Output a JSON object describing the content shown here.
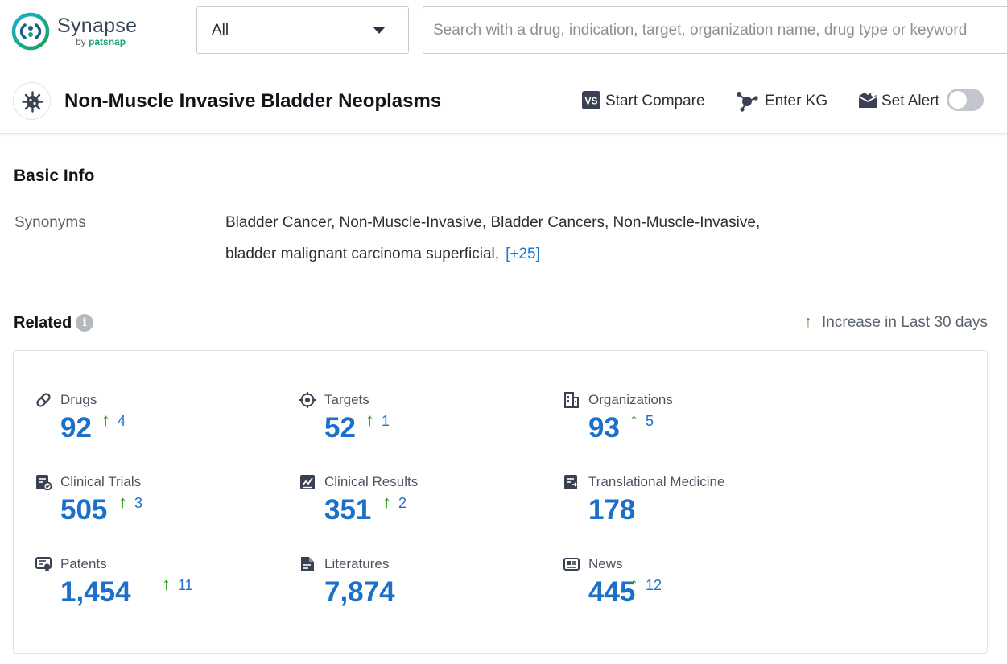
{
  "app": {
    "brand": "Synapse",
    "by": "by",
    "by_brand": "patsnap"
  },
  "search": {
    "scope_value": "All",
    "placeholder": "Search with a drug, indication, target, organization name, drug type or keyword"
  },
  "header": {
    "title": "Non-Muscle Invasive Bladder Neoplasms",
    "compare_label": "Start Compare",
    "kg_label": "Enter KG",
    "alert_label": "Set Alert",
    "alert_on": false
  },
  "basic_info": {
    "title": "Basic Info",
    "synonyms_label": "Synonyms",
    "synonyms_line1": "Bladder Cancer, Non-Muscle-Invasive,  Bladder Cancers, Non-Muscle-Invasive,",
    "synonyms_line2": "bladder malignant carcinoma superficial,",
    "synonyms_more": "[+25]"
  },
  "related": {
    "title": "Related",
    "info_glyph": "i",
    "legend_arrow": "↑",
    "legend_text": "Increase in Last 30 days",
    "stats": [
      {
        "label": "Drugs",
        "value": "92",
        "increase": "4",
        "icon": "pill-icon"
      },
      {
        "label": "Targets",
        "value": "52",
        "increase": "1",
        "icon": "target-icon"
      },
      {
        "label": "Organizations",
        "value": "93",
        "increase": "5",
        "icon": "building-icon"
      },
      {
        "label": "Clinical Trials",
        "value": "505",
        "increase": "3",
        "icon": "clinical-trial-icon"
      },
      {
        "label": "Clinical Results",
        "value": "351",
        "increase": "2",
        "icon": "chart-report-icon"
      },
      {
        "label": "Translational Medicine",
        "value": "178",
        "increase": "",
        "icon": "translational-icon"
      },
      {
        "label": "Patents",
        "value": "1,454",
        "increase": "11",
        "icon": "patent-icon"
      },
      {
        "label": "Literatures",
        "value": "7,874",
        "increase": "",
        "icon": "document-icon"
      },
      {
        "label": "News",
        "value": "445",
        "increase": "12",
        "icon": "news-icon"
      }
    ]
  },
  "colors": {
    "accent_blue": "#1d70c8",
    "increase_green": "#3a9a2b",
    "brand_teal": "#1aa37a"
  }
}
